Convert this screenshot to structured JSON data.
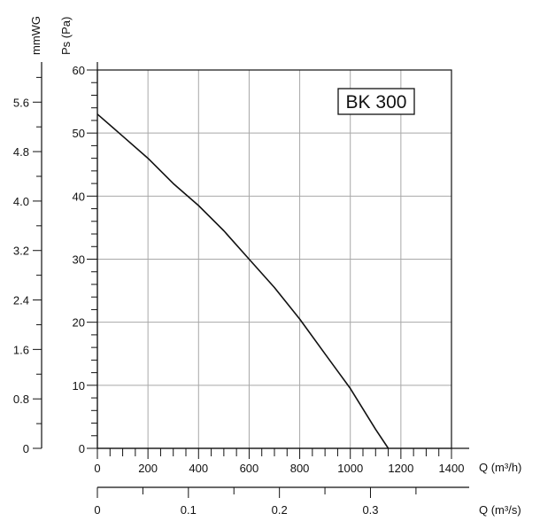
{
  "chart_data": {
    "type": "line",
    "model_label": "BK 300",
    "ylabel": "Ps (Pa)",
    "y2label": "mmWG",
    "xlabel": "Q (m³/h)",
    "x2label": "Q (m³/s)",
    "xlim": [
      0,
      1400
    ],
    "ylim": [
      0,
      60
    ],
    "x2lim": [
      0,
      0.389
    ],
    "y2lim": [
      0,
      6.12
    ],
    "x_ticks": [
      0,
      200,
      400,
      600,
      800,
      1000,
      1200,
      1400
    ],
    "y_ticks": [
      0,
      10,
      20,
      30,
      40,
      50,
      60
    ],
    "x2_ticks": [
      0,
      0.1,
      0.2,
      0.3
    ],
    "y2_ticks": [
      0,
      0.8,
      1.6,
      2.4,
      3.2,
      4.0,
      4.8,
      5.6
    ],
    "x_tick_labels": [
      "0",
      "200",
      "400",
      "600",
      "800",
      "1000",
      "1200",
      "1400"
    ],
    "y_tick_labels": [
      "0",
      "10",
      "20",
      "30",
      "40",
      "50",
      "60"
    ],
    "x2_tick_labels": [
      "0",
      "0.1",
      "0.2",
      "0.3"
    ],
    "y2_tick_labels": [
      "0",
      "0.8",
      "1.6",
      "2.4",
      "3.2",
      "4.0",
      "4.8",
      "5.6"
    ],
    "grid": true,
    "series": [
      {
        "x": [
          0,
          100,
          200,
          300,
          400,
          500,
          600,
          700,
          800,
          900,
          1000,
          1100,
          1150
        ],
        "y": [
          53,
          49.5,
          46,
          42,
          38.5,
          34.5,
          30,
          25.5,
          20.5,
          15,
          9.5,
          3,
          0
        ]
      }
    ]
  }
}
